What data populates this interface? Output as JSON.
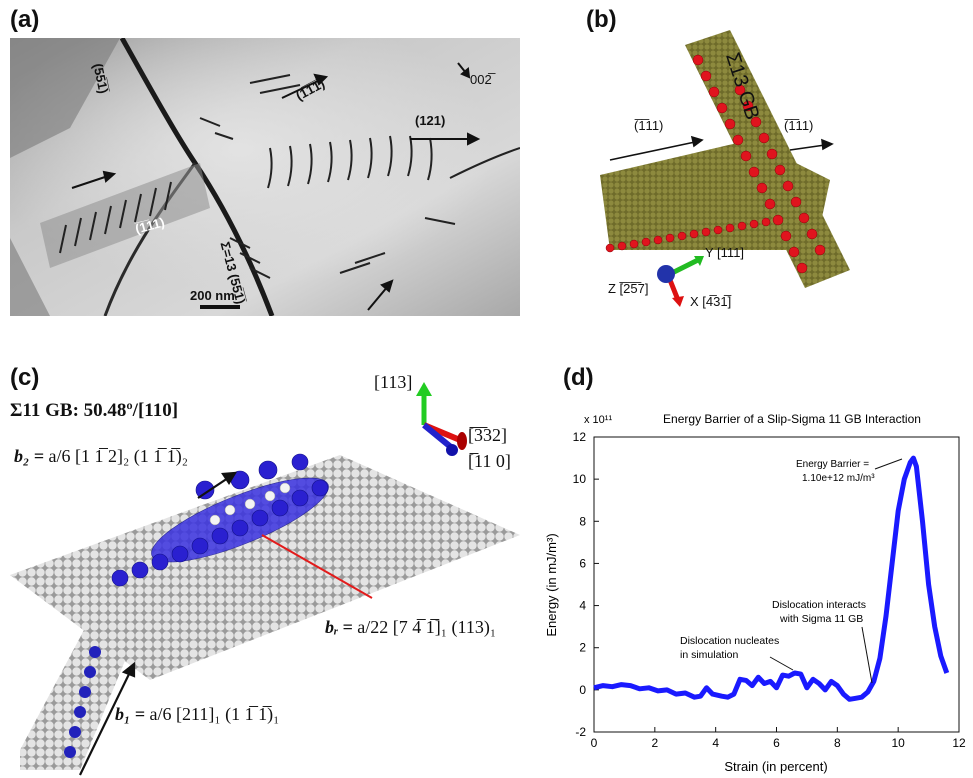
{
  "panels": {
    "a": {
      "label": "(a)",
      "annotations": {
        "plane_551_top": "(55̅1̅)",
        "dir_111bar": "(1̅1̅1̅)",
        "dir_002": "002̅",
        "plane_121": "(121)",
        "plane_111bar_left": "(̅1̅11)",
        "sigma_gb": "Σ=13 (55̅1̅)",
        "scale_bar": "200 nm"
      }
    },
    "b": {
      "label": "(b)",
      "gb_label": "Σ13 GB",
      "slip_left": "(̅1̅11)",
      "slip_right": "(̅1̅11)",
      "axis_y": "Y [111]",
      "axis_z": "Z [̅2̅5̅7]",
      "axis_x": "X [4̅31̅]"
    },
    "c": {
      "label": "(c)",
      "title": "Σ11 GB:  50.48º/[110]",
      "axis_113": "[113]",
      "axis_332": "[̅3̅32]",
      "axis_110": "[̅11 0]",
      "b2_lhs": "b₂ =",
      "b2_rhs": "a/6 [1 1̅ 2]₂ (1 1̅ 1̅)₂",
      "br_lhs": "bᵣ =",
      "br_rhs": "a/22 [7 4̅ 1̅]₁ (113)₁",
      "b1_lhs": "b₁ =",
      "b1_rhs": "a/6 [211]₁ (1 1̅ 1̅)₁"
    },
    "d": {
      "label": "(d)"
    }
  },
  "chart_data": {
    "type": "line",
    "title": "Energy Barrier of a Slip-Sigma 11 GB Interaction",
    "xlabel": "Strain (in percent)",
    "ylabel": "Energy (in mJ/m³)",
    "y_multiplier": "x 10¹¹",
    "xlim": [
      0,
      12
    ],
    "ylim": [
      -2,
      12
    ],
    "xticks": [
      "0",
      "2",
      "4",
      "6",
      "8",
      "10",
      "12"
    ],
    "yticks": [
      "-2",
      "0",
      "2",
      "4",
      "6",
      "8",
      "10",
      "12"
    ],
    "grid": false,
    "series_color": "#1a1aff",
    "x": [
      0.0,
      0.3,
      0.6,
      0.9,
      1.2,
      1.5,
      1.8,
      2.1,
      2.4,
      2.7,
      3.0,
      3.3,
      3.5,
      3.7,
      3.9,
      4.2,
      4.4,
      4.6,
      4.8,
      5.0,
      5.2,
      5.4,
      5.6,
      5.8,
      6.0,
      6.2,
      6.4,
      6.6,
      6.8,
      7.0,
      7.2,
      7.4,
      7.6,
      7.8,
      8.0,
      8.2,
      8.4,
      8.6,
      8.8,
      9.0,
      9.2,
      9.4,
      9.6,
      9.8,
      10.0,
      10.2,
      10.4,
      10.5,
      10.6,
      10.8,
      11.0,
      11.2,
      11.4,
      11.6
    ],
    "y": [
      0.1,
      0.2,
      0.15,
      0.25,
      0.2,
      0.05,
      0.1,
      -0.05,
      0.0,
      -0.2,
      -0.15,
      -0.35,
      -0.3,
      0.1,
      -0.2,
      -0.3,
      -0.35,
      -0.2,
      0.5,
      0.45,
      0.2,
      0.6,
      0.3,
      0.4,
      0.1,
      0.7,
      0.65,
      0.8,
      0.75,
      0.1,
      0.5,
      0.3,
      0.0,
      0.4,
      0.2,
      -0.2,
      -0.45,
      -0.4,
      -0.35,
      -0.1,
      0.4,
      1.5,
      3.5,
      6.0,
      8.5,
      10.0,
      10.8,
      11.0,
      10.6,
      8.0,
      5.0,
      3.0,
      1.6,
      0.8
    ],
    "annotations": [
      {
        "text": "Energy Barrier =",
        "x": 10.5,
        "y": 11.0
      },
      {
        "text": "1.10e+12 mJ/m³",
        "x": 10.5,
        "y": 11.0
      },
      {
        "text": "Dislocation interacts",
        "x": 9.2,
        "y": 0.2
      },
      {
        "text": "with Sigma 11 GB",
        "x": 9.2,
        "y": 0.2
      },
      {
        "text": "Dislocation nucleates",
        "x": 6.8,
        "y": 0.8
      },
      {
        "text": "in simulation",
        "x": 6.8,
        "y": 0.8
      }
    ]
  }
}
